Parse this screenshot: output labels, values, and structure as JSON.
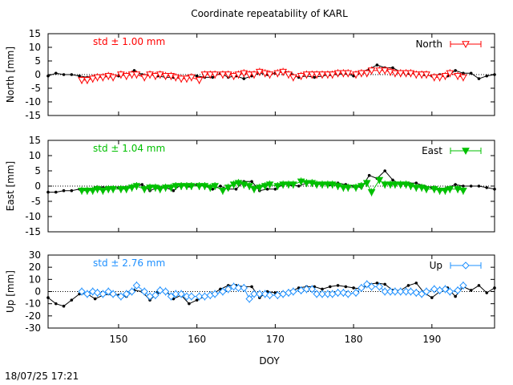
{
  "title": "Coordinate repeatability of KARL",
  "xlabel": "DOY",
  "timestamp": "18/07/25 17:21",
  "chart_data": [
    {
      "type": "line",
      "panel": "north",
      "ylabel": "North [mm]",
      "ylim": [
        -15,
        15
      ],
      "yticks": [
        -15,
        -10,
        -5,
        0,
        5,
        10,
        15
      ],
      "xlim": [
        141,
        198
      ],
      "xticks": [
        150,
        160,
        170,
        180,
        190
      ],
      "grid": false,
      "legend_position": "top-right",
      "std_label": "std ± 1.00 mm",
      "color": "#ff0000",
      "marker": "open-triangle-down",
      "series": [
        {
          "name": "North",
          "x": [
            145.3,
            146,
            146.7,
            147.3,
            148,
            148.7,
            149.3,
            150.3,
            151,
            151.7,
            152.3,
            153.3,
            154,
            154.7,
            155.3,
            156,
            156.7,
            157.3,
            158,
            158.7,
            159.3,
            160.3,
            161,
            161.7,
            162.3,
            163.3,
            164,
            164.7,
            165.3,
            166,
            166.7,
            167.3,
            168,
            168.7,
            169.3,
            170.3,
            171,
            171.7,
            172.3,
            173.3,
            174,
            174.7,
            175.3,
            176,
            176.7,
            177.3,
            178,
            178.7,
            179.3,
            180.3,
            181,
            181.7,
            182.3,
            183.3,
            184,
            184.7,
            185.3,
            186,
            186.7,
            187.3,
            188,
            188.7,
            189.3,
            190.3,
            191,
            191.7,
            192.3,
            193.3,
            194
          ],
          "y": [
            -2,
            -2,
            -1.5,
            -1,
            -1,
            -0.5,
            -1,
            0,
            -0.5,
            0,
            0,
            -1,
            0,
            -0.5,
            0,
            -0.5,
            -0.5,
            -1,
            -1.5,
            -1.5,
            -1,
            -2,
            0,
            0,
            0,
            0,
            0,
            -0.5,
            0,
            0.5,
            0,
            0,
            1,
            0.5,
            0,
            0.5,
            1,
            0,
            -1,
            -0.5,
            0,
            0,
            0,
            0,
            0,
            0,
            0.5,
            0.5,
            0.5,
            0,
            0.5,
            0.5,
            1.5,
            1.5,
            1.5,
            1,
            0.5,
            0.5,
            0.5,
            0.5,
            0,
            0,
            0,
            -1,
            -1,
            -0.5,
            0.5,
            -0.5,
            -1
          ]
        },
        {
          "name": "",
          "color": "#000000",
          "x": [
            141,
            142,
            143,
            144,
            145,
            146,
            147,
            148,
            149,
            150,
            151,
            152,
            153,
            154,
            155,
            156,
            157,
            158,
            159,
            160,
            161,
            162,
            163,
            164,
            165,
            166,
            167,
            168,
            169,
            170,
            171,
            172,
            173,
            174,
            175,
            176,
            177,
            178,
            179,
            180,
            181,
            182,
            183,
            184,
            185,
            186,
            187,
            188,
            189,
            190,
            191,
            192,
            193,
            194,
            195,
            196,
            197,
            198
          ],
          "y": [
            -0.5,
            0.5,
            0,
            0,
            -0.5,
            -1,
            -0.5,
            -1,
            -0.5,
            -0.5,
            0,
            1.5,
            0,
            0,
            -0.5,
            -1,
            -1,
            -1.5,
            -0.5,
            -0.5,
            -1,
            -1,
            0.5,
            -1,
            -0.5,
            -1.5,
            -0.5,
            0.5,
            0,
            0.5,
            1.5,
            0.5,
            -1,
            -0.5,
            -1,
            -0.5,
            0,
            0,
            0.5,
            -0.5,
            1,
            2,
            3.5,
            2.5,
            2.5,
            1,
            0.5,
            0.5,
            0,
            -0.5,
            0,
            -0.5,
            1.5,
            0.5,
            0.5,
            -1.5,
            -0.5,
            0
          ]
        }
      ]
    },
    {
      "type": "line",
      "panel": "east",
      "ylabel": "East [mm]",
      "ylim": [
        -15,
        15
      ],
      "yticks": [
        -15,
        -10,
        -5,
        0,
        5,
        10,
        15
      ],
      "xlim": [
        141,
        198
      ],
      "xticks": [
        150,
        160,
        170,
        180,
        190
      ],
      "grid": false,
      "legend_position": "top-right",
      "std_label": "std ± 1.04 mm",
      "color": "#00c000",
      "marker": "filled-triangle-down",
      "series": [
        {
          "name": "East",
          "x": [
            145.3,
            146,
            146.7,
            147.3,
            148,
            148.7,
            149.3,
            150.3,
            151,
            151.7,
            152.3,
            153.3,
            154,
            154.7,
            155.3,
            156,
            156.7,
            157.3,
            158,
            158.7,
            159.3,
            160.3,
            161,
            161.7,
            162.3,
            163.3,
            164,
            164.7,
            165.3,
            166,
            166.7,
            167.3,
            168,
            168.7,
            169.3,
            170.3,
            171,
            171.7,
            172.3,
            173.3,
            174,
            174.7,
            175.3,
            176,
            176.7,
            177.3,
            178,
            178.7,
            179.3,
            180.3,
            181,
            181.7,
            182.3,
            183.3,
            184,
            184.7,
            185.3,
            186,
            186.7,
            187.3,
            188,
            188.7,
            189.3,
            190.3,
            191,
            191.7,
            192.3,
            193.3,
            194
          ],
          "y": [
            -1.5,
            -1.5,
            -1.5,
            -1,
            -1.5,
            -1,
            -1,
            -1,
            -1,
            -0.5,
            0,
            -1,
            -0.5,
            -0.5,
            -1,
            -0.5,
            -0.5,
            0,
            0,
            0,
            0,
            0,
            0,
            -0.5,
            0,
            -1.5,
            -0.5,
            0.5,
            1,
            0.5,
            0,
            -1,
            -0.5,
            0,
            0.5,
            0,
            0.5,
            0.5,
            0.5,
            1.5,
            1,
            1,
            0.5,
            0.5,
            0.5,
            0.5,
            0,
            -0.5,
            -0.5,
            -0.5,
            0,
            1,
            -2,
            2,
            0.5,
            0.5,
            0.5,
            0.5,
            0.5,
            0,
            -0.5,
            -0.5,
            -1,
            -1,
            -1.5,
            -1.5,
            -1,
            -1,
            -1.5
          ]
        },
        {
          "name": "",
          "color": "#000000",
          "x": [
            141,
            142,
            143,
            144,
            145,
            146,
            147,
            148,
            149,
            150,
            151,
            152,
            153,
            154,
            155,
            156,
            157,
            158,
            159,
            160,
            161,
            162,
            163,
            164,
            165,
            166,
            167,
            168,
            169,
            170,
            171,
            172,
            173,
            174,
            175,
            176,
            177,
            178,
            179,
            180,
            181,
            182,
            183,
            184,
            185,
            186,
            187,
            188,
            189,
            190,
            191,
            192,
            193,
            194,
            195,
            196,
            197,
            198
          ],
          "y": [
            -2,
            -2,
            -1.5,
            -1.5,
            -1,
            -1.5,
            -0.5,
            -0.5,
            -0.5,
            -0.5,
            -1,
            0,
            0.5,
            -1.5,
            -0.5,
            -0.5,
            -1.5,
            0.5,
            0,
            0.5,
            0,
            -1,
            0,
            -1,
            -1,
            1.5,
            1.5,
            -1.5,
            -1,
            -1,
            0.5,
            0.5,
            0,
            1,
            1,
            0.5,
            0.5,
            1,
            0.5,
            0,
            -0.5,
            3.5,
            2.5,
            5,
            2,
            0.5,
            1,
            1,
            0,
            -0.5,
            -1,
            -0.5,
            0.5,
            0,
            0,
            0,
            -0.5,
            -1
          ]
        }
      ]
    },
    {
      "type": "line",
      "panel": "up",
      "ylabel": "Up [mm]",
      "ylim": [
        -30,
        30
      ],
      "yticks": [
        -30,
        -20,
        -10,
        0,
        10,
        20,
        30
      ],
      "xlim": [
        141,
        198
      ],
      "xticks": [
        150,
        160,
        170,
        180,
        190
      ],
      "grid": false,
      "legend_position": "top-right",
      "std_label": "std ± 2.76 mm",
      "color": "#1e90ff",
      "marker": "open-diamond",
      "series": [
        {
          "name": "Up",
          "x": [
            145.3,
            146,
            146.7,
            147.3,
            148,
            148.7,
            149.3,
            150.3,
            151,
            151.7,
            152.3,
            153.3,
            154,
            154.7,
            155.3,
            156,
            156.7,
            157.3,
            158,
            158.7,
            159.3,
            160.3,
            161,
            161.7,
            162.3,
            163.3,
            164,
            164.7,
            165.3,
            166,
            166.7,
            167.3,
            168,
            168.7,
            169.3,
            170.3,
            171,
            171.7,
            172.3,
            173.3,
            174,
            174.7,
            175.3,
            176,
            176.7,
            177.3,
            178,
            178.7,
            179.3,
            180.3,
            181,
            181.7,
            182.3,
            183.3,
            184,
            184.7,
            185.3,
            186,
            186.7,
            187.3,
            188,
            188.7,
            189.3,
            190.3,
            191,
            191.7,
            192.3,
            193.3,
            194
          ],
          "y": [
            0,
            -2,
            0,
            -1,
            -2,
            0,
            -2,
            -4,
            -2,
            0,
            5,
            0,
            -4,
            -3,
            1,
            0,
            -4,
            -2,
            -2,
            -4,
            -4,
            -4,
            -4,
            -3,
            -2,
            0,
            2,
            4,
            3,
            3,
            -6,
            -2,
            -2,
            -2,
            -3,
            -3,
            -2,
            -1,
            0,
            1,
            2,
            2,
            -2,
            -2,
            -2,
            -2,
            -1,
            -1,
            -2,
            -1,
            3,
            6,
            4,
            4,
            0,
            0,
            0,
            0,
            0,
            0,
            -1,
            -2,
            0,
            2,
            1,
            2,
            0,
            1,
            5
          ]
        },
        {
          "name": "",
          "color": "#000000",
          "x": [
            141,
            142,
            143,
            144,
            145,
            146,
            147,
            148,
            149,
            150,
            151,
            152,
            153,
            154,
            155,
            156,
            157,
            158,
            159,
            160,
            161,
            162,
            163,
            164,
            165,
            166,
            167,
            168,
            169,
            170,
            171,
            172,
            173,
            174,
            175,
            176,
            177,
            178,
            179,
            180,
            181,
            182,
            183,
            184,
            185,
            186,
            187,
            188,
            189,
            190,
            191,
            192,
            193,
            194,
            195,
            196,
            197,
            198
          ],
          "y": [
            -5,
            -10,
            -12,
            -7,
            -2,
            -2,
            -6,
            -3,
            -2,
            -3,
            -4,
            1,
            0,
            -7,
            -1,
            1,
            -6,
            -3,
            -10,
            -7,
            -4,
            -2,
            2,
            5,
            5,
            4,
            4,
            -5,
            0,
            -1,
            -2,
            0,
            3,
            4,
            4,
            2,
            4,
            5,
            4,
            3,
            2,
            6,
            7,
            6,
            1,
            1,
            5,
            7,
            -1,
            -5,
            0,
            3,
            -4,
            4,
            1,
            5,
            -1,
            3
          ]
        }
      ]
    }
  ]
}
